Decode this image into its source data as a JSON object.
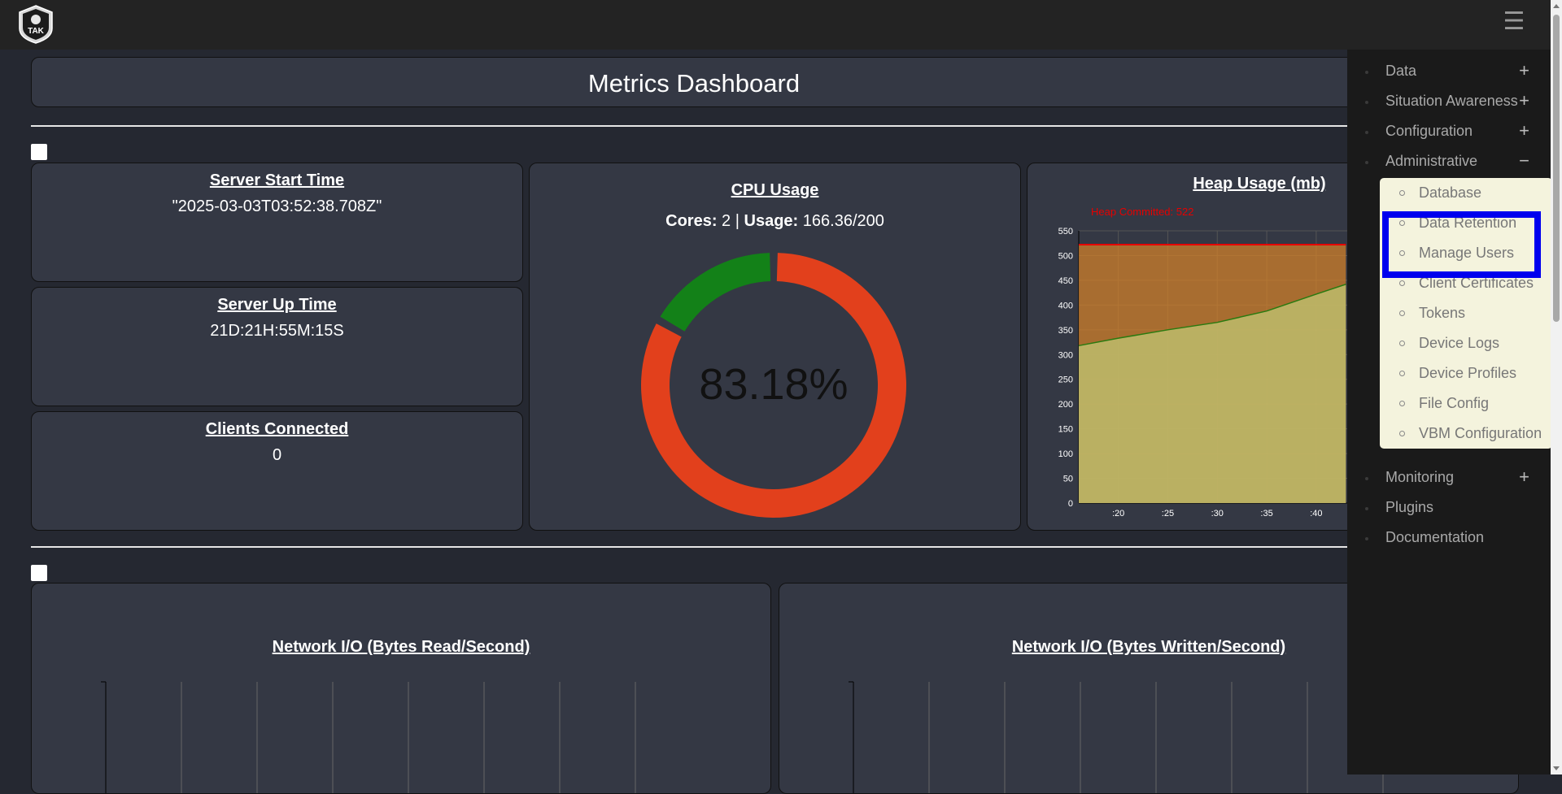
{
  "header": {
    "logo_text": "TAK"
  },
  "dashboard": {
    "title": "Metrics Dashboard",
    "server_start": {
      "title": "Server Start Time",
      "value": "\"2025-03-03T03:52:38.708Z\""
    },
    "server_up": {
      "title": "Server Up Time",
      "value": "21D:21H:55M:15S"
    },
    "clients": {
      "title": "Clients Connected",
      "value": "0"
    },
    "cpu": {
      "title": "CPU Usage",
      "cores_label": "Cores:",
      "cores_value": "2",
      "separator": "|",
      "usage_label": "Usage:",
      "usage_value": "166.36/200",
      "percent_text": "83.18%",
      "used_fraction": 0.8318,
      "used_color": "#e2401c",
      "free_color": "#138118"
    },
    "heap": {
      "title": "Heap Usage (mb)",
      "committed_label": "Heap Committed: 522"
    },
    "network_read": {
      "title": "Network I/O (Bytes Read/Second)"
    },
    "network_written": {
      "title": "Network I/O (Bytes Written/Second)"
    }
  },
  "chart_data": {
    "type": "area",
    "title": "Heap Usage (mb)",
    "ylim": [
      0,
      550
    ],
    "y_ticks": [
      0,
      50,
      100,
      150,
      200,
      250,
      300,
      350,
      400,
      450,
      500,
      550
    ],
    "x_ticks": [
      ":20",
      ":25",
      ":30",
      ":35",
      ":40"
    ],
    "x": [
      16,
      20,
      25,
      30,
      35,
      40,
      43
    ],
    "series": [
      {
        "name": "Heap Committed: 522",
        "values": [
          522,
          522,
          522,
          522,
          522,
          522,
          522
        ],
        "color": "#e60000"
      },
      {
        "values": [
          318,
          333,
          350,
          365,
          388,
          422,
          442
        ],
        "color": "#2a7a10"
      }
    ],
    "grid": true
  },
  "sidebar": {
    "items": [
      {
        "label": "Data",
        "toggle": "+"
      },
      {
        "label": "Situation Awareness",
        "toggle": "+"
      },
      {
        "label": "Configuration",
        "toggle": "+"
      },
      {
        "label": "Administrative",
        "toggle": "−"
      },
      {
        "label": "Monitoring",
        "toggle": "+"
      },
      {
        "label": "Plugins",
        "toggle": ""
      },
      {
        "label": "Documentation",
        "toggle": ""
      }
    ],
    "admin_submenu": [
      "Database",
      "Data Retention",
      "Manage Users",
      "Client Certificates",
      "Tokens",
      "Device Logs",
      "Device Profiles",
      "File Config",
      "VBM Configuration"
    ]
  },
  "icons": {
    "menu": "hamburger-icon",
    "logo": "tak-logo-icon"
  }
}
